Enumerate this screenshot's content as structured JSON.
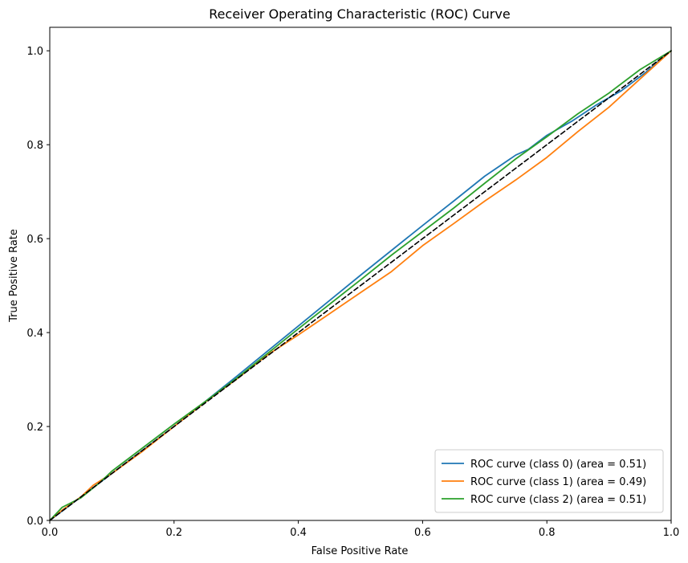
{
  "chart_data": {
    "type": "line",
    "title": "Receiver Operating Characteristic (ROC) Curve",
    "xlabel": "False Positive Rate",
    "ylabel": "True Positive Rate",
    "xlim": [
      0.0,
      1.0
    ],
    "ylim": [
      0.0,
      1.05
    ],
    "xticks": [
      0.0,
      0.2,
      0.4,
      0.6,
      0.8,
      1.0
    ],
    "yticks": [
      0.0,
      0.2,
      0.4,
      0.6,
      0.8,
      1.0
    ],
    "xtick_labels": [
      "0.0",
      "0.2",
      "0.4",
      "0.6",
      "0.8",
      "1.0"
    ],
    "ytick_labels": [
      "0.0",
      "0.2",
      "0.4",
      "0.6",
      "0.8",
      "1.0"
    ],
    "grid": false,
    "legend_position": "bottom-right",
    "series": [
      {
        "name": "ROC curve (class 0) (area = 0.51)",
        "color": "#1f77b4",
        "x": [
          0,
          0.02,
          0.05,
          0.1,
          0.15,
          0.2,
          0.25,
          0.3,
          0.35,
          0.4,
          0.45,
          0.5,
          0.55,
          0.6,
          0.65,
          0.7,
          0.75,
          0.77,
          0.8,
          0.84,
          0.88,
          0.92,
          0.96,
          0.99,
          1.0
        ],
        "y": [
          0,
          0.02,
          0.05,
          0.1,
          0.15,
          0.2,
          0.253,
          0.306,
          0.36,
          0.414,
          0.468,
          0.522,
          0.575,
          0.628,
          0.68,
          0.733,
          0.778,
          0.79,
          0.82,
          0.85,
          0.885,
          0.915,
          0.955,
          0.99,
          1.0
        ]
      },
      {
        "name": "ROC curve (class 1) (area = 0.49)",
        "color": "#ff7f0e",
        "x": [
          0,
          0.02,
          0.05,
          0.07,
          0.1,
          0.15,
          0.2,
          0.25,
          0.3,
          0.35,
          0.4,
          0.45,
          0.5,
          0.55,
          0.6,
          0.65,
          0.7,
          0.75,
          0.8,
          0.85,
          0.9,
          0.95,
          1.0
        ],
        "y": [
          0,
          0.022,
          0.05,
          0.075,
          0.1,
          0.148,
          0.2,
          0.252,
          0.3,
          0.352,
          0.395,
          0.44,
          0.485,
          0.53,
          0.585,
          0.632,
          0.68,
          0.725,
          0.773,
          0.828,
          0.88,
          0.94,
          1.0
        ]
      },
      {
        "name": "ROC curve (class 2) (area = 0.51)",
        "color": "#2ca02c",
        "x": [
          0,
          0.02,
          0.05,
          0.08,
          0.1,
          0.15,
          0.2,
          0.25,
          0.3,
          0.35,
          0.4,
          0.45,
          0.5,
          0.55,
          0.6,
          0.65,
          0.7,
          0.75,
          0.8,
          0.85,
          0.9,
          0.95,
          1.0
        ],
        "y": [
          0,
          0.028,
          0.048,
          0.08,
          0.105,
          0.155,
          0.205,
          0.253,
          0.302,
          0.355,
          0.408,
          0.46,
          0.512,
          0.565,
          0.615,
          0.665,
          0.718,
          0.77,
          0.817,
          0.866,
          0.91,
          0.96,
          1.0
        ]
      },
      {
        "name": "",
        "color": "#000000",
        "dashed": true,
        "x": [
          0,
          1.0
        ],
        "y": [
          0,
          1.0
        ]
      }
    ]
  }
}
